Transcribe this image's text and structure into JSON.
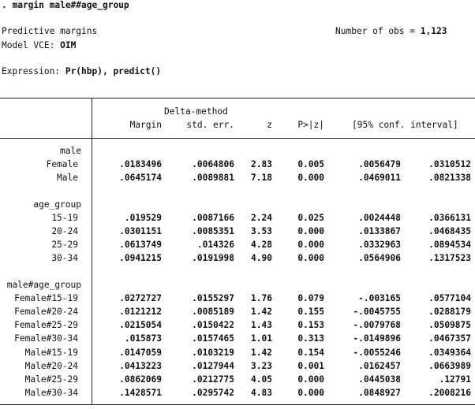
{
  "command": ". margin male##age_group",
  "header": {
    "title": "Predictive margins",
    "vce_label": "Model VCE: ",
    "vce_value": "OIM",
    "obs_label": "Number of obs = ",
    "obs_value": "1,123",
    "expression_label": "Expression: ",
    "expression_value": "Pr(hbp), predict()"
  },
  "table": {
    "header_top": "Delta-method",
    "columns": [
      "Margin",
      "std. err.",
      "z",
      "P>|z|",
      "[95% conf. interval]"
    ],
    "groups": [
      {
        "name": "male",
        "rows": [
          {
            "label": "Female",
            "values": [
              ".0183496",
              ".0064806",
              "2.83",
              "0.005",
              ".0056479",
              ".0310512"
            ]
          },
          {
            "label": "Male",
            "values": [
              ".0645174",
              ".0089881",
              "7.18",
              "0.000",
              ".0469011",
              ".0821338"
            ]
          }
        ]
      },
      {
        "name": "age_group",
        "rows": [
          {
            "label": "15-19",
            "values": [
              ".019529",
              ".0087166",
              "2.24",
              "0.025",
              ".0024448",
              ".0366131"
            ]
          },
          {
            "label": "20-24",
            "values": [
              ".0301151",
              ".0085351",
              "3.53",
              "0.000",
              ".0133867",
              ".0468435"
            ]
          },
          {
            "label": "25-29",
            "values": [
              ".0613749",
              ".014326",
              "4.28",
              "0.000",
              ".0332963",
              ".0894534"
            ]
          },
          {
            "label": "30-34",
            "values": [
              ".0941215",
              ".0191998",
              "4.90",
              "0.000",
              ".0564906",
              ".1317523"
            ]
          }
        ]
      },
      {
        "name": "male#age_group",
        "rows": [
          {
            "label": "Female#15-19",
            "values": [
              ".0272727",
              ".0155297",
              "1.76",
              "0.079",
              "-.003165",
              ".0577104"
            ]
          },
          {
            "label": "Female#20-24",
            "values": [
              ".0121212",
              ".0085189",
              "1.42",
              "0.155",
              "-.0045755",
              ".0288179"
            ]
          },
          {
            "label": "Female#25-29",
            "values": [
              ".0215054",
              ".0150422",
              "1.43",
              "0.153",
              "-.0079768",
              ".0509875"
            ]
          },
          {
            "label": "Female#30-34",
            "values": [
              ".015873",
              ".0157465",
              "1.01",
              "0.313",
              "-.0149896",
              ".0467357"
            ]
          },
          {
            "label": "Male#15-19",
            "values": [
              ".0147059",
              ".0103219",
              "1.42",
              "0.154",
              "-.0055246",
              ".0349364"
            ]
          },
          {
            "label": "Male#20-24",
            "values": [
              ".0413223",
              ".0127944",
              "3.23",
              "0.001",
              ".0162457",
              ".0663989"
            ]
          },
          {
            "label": "Male#25-29",
            "values": [
              ".0862069",
              ".0212775",
              "4.05",
              "0.000",
              ".0445038",
              ".12791"
            ]
          },
          {
            "label": "Male#30-34",
            "values": [
              ".1428571",
              ".0295742",
              "4.83",
              "0.000",
              ".0848927",
              ".2008216"
            ]
          }
        ]
      }
    ]
  }
}
